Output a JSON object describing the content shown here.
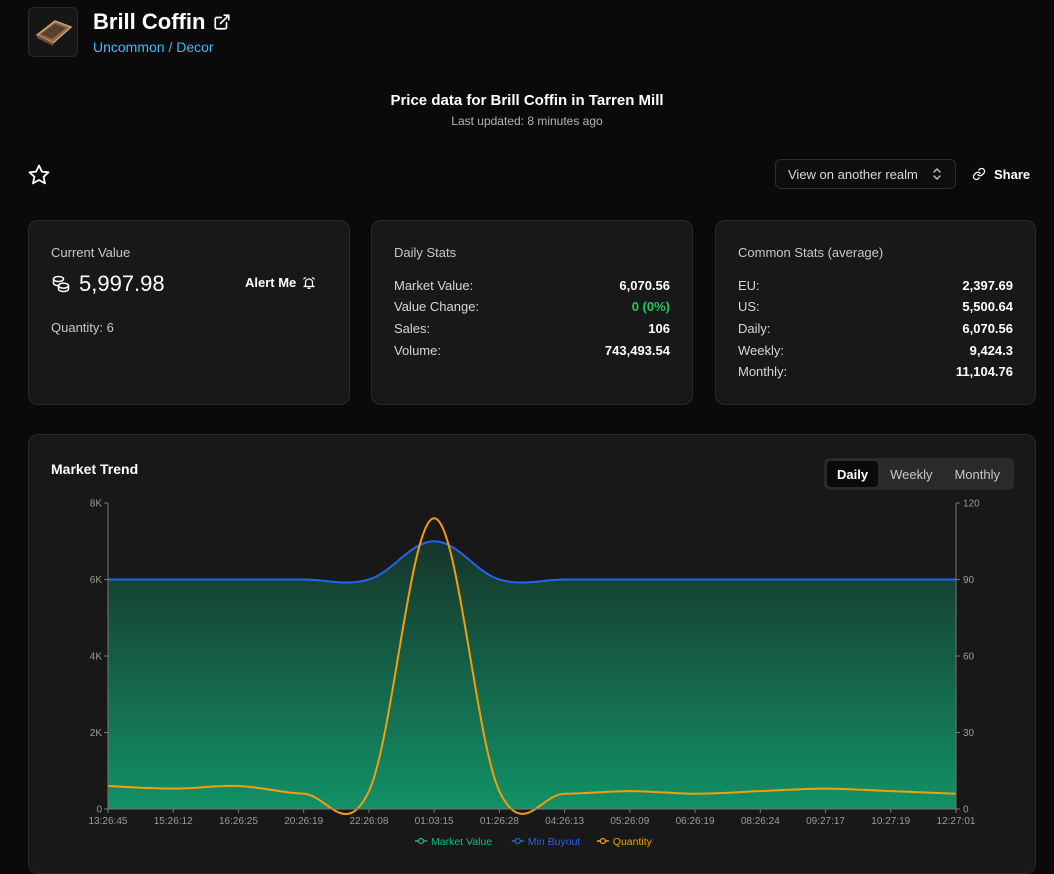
{
  "item": {
    "name": "Brill Coffin",
    "subtitle": "Uncommon / Decor",
    "thumb_icon": "coffin-icon",
    "external_icon": "external-link-icon"
  },
  "header": {
    "title": "Price data for Brill Coffin in Tarren Mill",
    "updated": "Last updated: 8 minutes ago"
  },
  "toolbar": {
    "favorite_icon": "star-icon",
    "realm_label": "View on another realm",
    "share_label": "Share"
  },
  "cards": {
    "current": {
      "title": "Current Value",
      "value": "5,997.98",
      "alert_label": "Alert Me",
      "quantity_label": "Quantity:",
      "quantity": "6"
    },
    "daily": {
      "title": "Daily Stats",
      "rows": [
        {
          "label": "Market Value:",
          "value": "6,070.56"
        },
        {
          "label": "Value Change:",
          "value": "0 (0%)"
        },
        {
          "label": "Sales:",
          "value": "106"
        },
        {
          "label": "Volume:",
          "value": "743,493.54"
        }
      ]
    },
    "common": {
      "title": "Common Stats (average)",
      "rows": [
        {
          "label": "EU:",
          "value": "2,397.69"
        },
        {
          "label": "US:",
          "value": "5,500.64"
        },
        {
          "label": "Daily:",
          "value": "6,070.56"
        },
        {
          "label": "Weekly:",
          "value": "9,424.3"
        },
        {
          "label": "Monthly:",
          "value": "11,104.76"
        }
      ]
    }
  },
  "colors": {
    "accent_blue": "#38bdf8",
    "market_value": "#10b981",
    "min_buyout": "#2563eb",
    "quantity": "#f59e0b",
    "positive": "#22c55e"
  },
  "chart": {
    "title": "Market Trend",
    "tabs": [
      "Daily",
      "Weekly",
      "Monthly"
    ],
    "active_tab": "Daily"
  },
  "chart_data": {
    "type": "area",
    "title": "Market Trend",
    "x": [
      "13:26:45",
      "15:26:12",
      "16:26:25",
      "20:26:19",
      "22:26:08",
      "01:03:15",
      "01:26:28",
      "04:26:13",
      "05:26:09",
      "06:26:19",
      "08:26:24",
      "09:27:17",
      "10:27:19",
      "12:27:01"
    ],
    "left_axis": {
      "ticks": [
        "0",
        "2K",
        "4K",
        "6K",
        "8K"
      ],
      "ylim": [
        0,
        8000
      ]
    },
    "right_axis": {
      "ticks": [
        "0",
        "30",
        "60",
        "90",
        "120"
      ],
      "ylim": [
        0,
        120
      ]
    },
    "series": [
      {
        "name": "Market Value",
        "axis": "left",
        "kind": "area",
        "values": [
          6000,
          6000,
          6000,
          6000,
          6000,
          7000,
          6000,
          6000,
          6000,
          6000,
          6000,
          6000,
          6000,
          6000
        ]
      },
      {
        "name": "Min Buyout",
        "axis": "left",
        "kind": "line",
        "values": [
          6000,
          6000,
          6000,
          6000,
          6000,
          7000,
          6000,
          6000,
          6000,
          6000,
          6000,
          6000,
          6000,
          6000
        ]
      },
      {
        "name": "Quantity",
        "axis": "right",
        "kind": "line",
        "values": [
          9,
          8,
          9,
          6,
          7,
          114,
          7,
          6,
          7,
          6,
          7,
          8,
          7,
          6
        ]
      }
    ],
    "legend_position": "bottom",
    "grid": false
  }
}
